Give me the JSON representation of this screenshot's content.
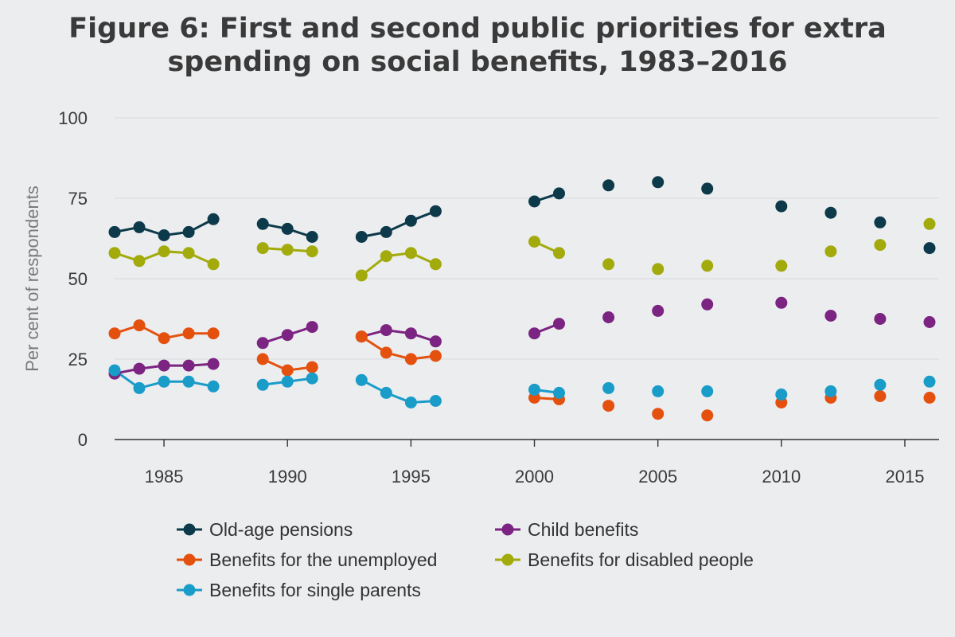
{
  "chart_data": {
    "type": "line",
    "title_lines": [
      "Figure 6: First and second public priorities for extra",
      "spending on social benefits, 1983–2016"
    ],
    "xlabel": "",
    "ylabel": "Per cent of respondents",
    "xlim": [
      1983,
      2016
    ],
    "ylim": [
      0,
      100
    ],
    "yticks": [
      0,
      25,
      50,
      75,
      100
    ],
    "xticks": [
      1985,
      1990,
      1995,
      2000,
      2005,
      2010,
      2015
    ],
    "grid": "horizontal",
    "legend_position": "bottom",
    "connected_years": [
      [
        1983,
        1984,
        1985,
        1986,
        1987
      ],
      [
        1989,
        1990,
        1991
      ],
      [
        1993,
        1994,
        1995,
        1996
      ],
      [
        2000,
        2001
      ]
    ],
    "series": [
      {
        "name": "Old-age pensions",
        "color": "#0d3a4a",
        "points": [
          [
            1983,
            64.5
          ],
          [
            1984,
            66
          ],
          [
            1985,
            63.5
          ],
          [
            1986,
            64.5
          ],
          [
            1987,
            68.5
          ],
          [
            1989,
            67
          ],
          [
            1990,
            65.5
          ],
          [
            1991,
            63
          ],
          [
            1993,
            63
          ],
          [
            1994,
            64.5
          ],
          [
            1995,
            68
          ],
          [
            1996,
            71
          ],
          [
            2000,
            74
          ],
          [
            2001,
            76.5
          ],
          [
            2003,
            79
          ],
          [
            2005,
            80
          ],
          [
            2007,
            78
          ],
          [
            2010,
            72.5
          ],
          [
            2012,
            70.5
          ],
          [
            2014,
            67.5
          ],
          [
            2016,
            59.5
          ]
        ]
      },
      {
        "name": "Child benefits",
        "color": "#7b2481",
        "points": [
          [
            1983,
            20.5
          ],
          [
            1984,
            22
          ],
          [
            1985,
            23
          ],
          [
            1986,
            23
          ],
          [
            1987,
            23.5
          ],
          [
            1989,
            30
          ],
          [
            1990,
            32.5
          ],
          [
            1991,
            35
          ],
          [
            1993,
            32
          ],
          [
            1994,
            34
          ],
          [
            1995,
            33
          ],
          [
            1996,
            30.5
          ],
          [
            2000,
            33
          ],
          [
            2001,
            36
          ],
          [
            2003,
            38
          ],
          [
            2005,
            40
          ],
          [
            2007,
            42
          ],
          [
            2010,
            42.5
          ],
          [
            2012,
            38.5
          ],
          [
            2014,
            37.5
          ],
          [
            2016,
            36.5
          ]
        ]
      },
      {
        "name": "Benefits for the unemployed",
        "color": "#e4510f",
        "points": [
          [
            1983,
            33
          ],
          [
            1984,
            35.5
          ],
          [
            1985,
            31.5
          ],
          [
            1986,
            33
          ],
          [
            1987,
            33
          ],
          [
            1989,
            25
          ],
          [
            1990,
            21.5
          ],
          [
            1991,
            22.5
          ],
          [
            1993,
            32
          ],
          [
            1994,
            27
          ],
          [
            1995,
            25
          ],
          [
            1996,
            26
          ],
          [
            2000,
            13
          ],
          [
            2001,
            12.5
          ],
          [
            2003,
            10.5
          ],
          [
            2005,
            8
          ],
          [
            2007,
            7.5
          ],
          [
            2010,
            11.5
          ],
          [
            2012,
            13
          ],
          [
            2014,
            13.5
          ],
          [
            2016,
            13
          ]
        ]
      },
      {
        "name": "Benefits for disabled people",
        "color": "#a2ab0b",
        "points": [
          [
            1983,
            58
          ],
          [
            1984,
            55.5
          ],
          [
            1985,
            58.5
          ],
          [
            1986,
            58
          ],
          [
            1987,
            54.5
          ],
          [
            1989,
            59.5
          ],
          [
            1990,
            59
          ],
          [
            1991,
            58.5
          ],
          [
            1993,
            51
          ],
          [
            1994,
            57
          ],
          [
            1995,
            58
          ],
          [
            1996,
            54.5
          ],
          [
            2000,
            61.5
          ],
          [
            2001,
            58
          ],
          [
            2003,
            54.5
          ],
          [
            2005,
            53
          ],
          [
            2007,
            54
          ],
          [
            2010,
            54
          ],
          [
            2012,
            58.5
          ],
          [
            2014,
            60.5
          ],
          [
            2016,
            67
          ]
        ]
      },
      {
        "name": "Benefits for single parents",
        "color": "#1a9cc9",
        "points": [
          [
            1983,
            21.5
          ],
          [
            1984,
            16
          ],
          [
            1985,
            18
          ],
          [
            1986,
            18
          ],
          [
            1987,
            16.5
          ],
          [
            1989,
            17
          ],
          [
            1990,
            18
          ],
          [
            1991,
            19
          ],
          [
            1993,
            18.5
          ],
          [
            1994,
            14.5
          ],
          [
            1995,
            11.5
          ],
          [
            1996,
            12
          ],
          [
            2000,
            15.5
          ],
          [
            2001,
            14.5
          ],
          [
            2003,
            16
          ],
          [
            2005,
            15
          ],
          [
            2007,
            15
          ],
          [
            2010,
            14
          ],
          [
            2012,
            15
          ],
          [
            2014,
            17
          ],
          [
            2016,
            18
          ]
        ]
      }
    ]
  }
}
